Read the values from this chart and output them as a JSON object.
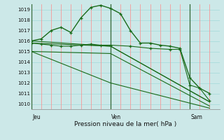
{
  "title": "Pression niveau de la mer( hPa )",
  "bg_color": "#cce8e8",
  "plot_bg_color": "#cce8e8",
  "grid_color_red": "#ff8888",
  "grid_color_teal": "#aadddd",
  "line_color": "#1a6b1a",
  "ylim": [
    1009.5,
    1019.5
  ],
  "yticks": [
    1010,
    1011,
    1012,
    1013,
    1014,
    1015,
    1016,
    1017,
    1018,
    1019
  ],
  "xlim": [
    0,
    57
  ],
  "day_ticks": [
    0,
    24,
    48
  ],
  "day_labels": [
    "Jeu",
    "Ven",
    "Sam"
  ],
  "series": [
    {
      "x": [
        0,
        3,
        6,
        9,
        12,
        15,
        18,
        21,
        24,
        27,
        30,
        33,
        36,
        39,
        42,
        45,
        48,
        51,
        54
      ],
      "y": [
        1016.0,
        1016.2,
        1017.0,
        1017.3,
        1016.8,
        1018.2,
        1019.2,
        1019.4,
        1019.1,
        1018.6,
        1017.0,
        1015.8,
        1015.8,
        1015.6,
        1015.5,
        1015.3,
        1012.5,
        1011.5,
        1011.0
      ],
      "has_marker": true,
      "lw": 1.0
    },
    {
      "x": [
        0,
        3,
        6,
        9,
        12,
        15,
        18,
        21,
        24,
        30,
        36,
        42,
        45,
        48,
        51,
        54
      ],
      "y": [
        1015.8,
        1015.7,
        1015.6,
        1015.5,
        1015.5,
        1015.6,
        1015.7,
        1015.6,
        1015.6,
        1015.5,
        1015.3,
        1015.2,
        1015.2,
        1011.8,
        1011.5,
        1010.3
      ],
      "has_marker": true,
      "lw": 0.8
    },
    {
      "x": [
        0,
        24,
        54
      ],
      "y": [
        1015.8,
        1015.5,
        1010.2
      ],
      "has_marker": false,
      "lw": 0.8
    },
    {
      "x": [
        0,
        24,
        54
      ],
      "y": [
        1015.0,
        1014.8,
        1009.8
      ],
      "has_marker": false,
      "lw": 0.8
    },
    {
      "x": [
        0,
        24,
        54
      ],
      "y": [
        1016.0,
        1015.5,
        1010.2
      ],
      "has_marker": false,
      "lw": 0.8
    },
    {
      "x": [
        0,
        24,
        54
      ],
      "y": [
        1015.0,
        1012.0,
        1009.6
      ],
      "has_marker": false,
      "lw": 0.8
    }
  ]
}
